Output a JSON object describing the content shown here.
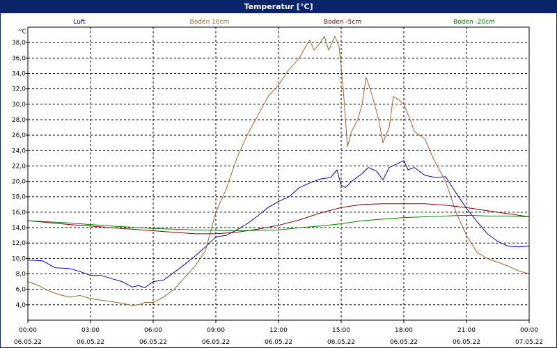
{
  "window": {
    "title": "Temperatur [°C]"
  },
  "chart_data": {
    "type": "line",
    "title": "Temperatur [°C]",
    "y_unit": "°C",
    "ylim": [
      2,
      40
    ],
    "y_ticks": [
      "4,0",
      "6,0",
      "8,0",
      "10,0",
      "12,0",
      "14,0",
      "16,0",
      "18,0",
      "20,0",
      "22,0",
      "24,0",
      "26,0",
      "28,0",
      "30,0",
      "32,0",
      "34,0",
      "36,0",
      "38,0"
    ],
    "y_tick_values": [
      4,
      6,
      8,
      10,
      12,
      14,
      16,
      18,
      20,
      22,
      24,
      26,
      28,
      30,
      32,
      34,
      36,
      38
    ],
    "x_range_hours": [
      0,
      24
    ],
    "x_ticks": [
      {
        "h": 0,
        "time": "00:00",
        "date": "06.05.22"
      },
      {
        "h": 3,
        "time": "03:00",
        "date": "06.05.22"
      },
      {
        "h": 6,
        "time": "06:00",
        "date": "06.05.22"
      },
      {
        "h": 9,
        "time": "09:00",
        "date": "06.05.22"
      },
      {
        "h": 12,
        "time": "12:00",
        "date": "06.05.22"
      },
      {
        "h": 15,
        "time": "15:00",
        "date": "06.05.22"
      },
      {
        "h": 18,
        "time": "18:00",
        "date": "06.05.22"
      },
      {
        "h": 21,
        "time": "21:00",
        "date": "06.05.22"
      },
      {
        "h": 24,
        "time": "00:00",
        "date": "07.05.22"
      }
    ],
    "grid": true,
    "legend_position": "top",
    "series": [
      {
        "name": "Luft",
        "color": "#0000cc",
        "points": [
          [
            0,
            9.8
          ],
          [
            0.7,
            9.7
          ],
          [
            1.3,
            8.8
          ],
          [
            2,
            8.7
          ],
          [
            2.5,
            8.3
          ],
          [
            3,
            7.8
          ],
          [
            3.5,
            7.8
          ],
          [
            4,
            7.4
          ],
          [
            4.5,
            7
          ],
          [
            5,
            6.3
          ],
          [
            5.3,
            6.5
          ],
          [
            5.6,
            6.2
          ],
          [
            6,
            7
          ],
          [
            6.5,
            7.2
          ],
          [
            7,
            8.2
          ],
          [
            7.5,
            9.2
          ],
          [
            8,
            10.3
          ],
          [
            8.5,
            11.5
          ],
          [
            9,
            12.8
          ],
          [
            9.5,
            13
          ],
          [
            10,
            13.7
          ],
          [
            10.5,
            14.5
          ],
          [
            11,
            15.5
          ],
          [
            11.5,
            16.6
          ],
          [
            12,
            17.4
          ],
          [
            12.5,
            18
          ],
          [
            13,
            19.2
          ],
          [
            13.5,
            19.8
          ],
          [
            14,
            20.3
          ],
          [
            14.5,
            20.5
          ],
          [
            14.8,
            21.5
          ],
          [
            15,
            19.5
          ],
          [
            15.2,
            19.2
          ],
          [
            15.5,
            20
          ],
          [
            16,
            21
          ],
          [
            16.3,
            21.8
          ],
          [
            16.7,
            21.3
          ],
          [
            17,
            20.2
          ],
          [
            17.3,
            21.8
          ],
          [
            17.7,
            22.3
          ],
          [
            18,
            22.7
          ],
          [
            18.2,
            21.5
          ],
          [
            18.5,
            21.8
          ],
          [
            19,
            20.8
          ],
          [
            19.5,
            20.5
          ],
          [
            20,
            20.6
          ],
          [
            20.5,
            18.5
          ],
          [
            21,
            16.5
          ],
          [
            21.5,
            14.8
          ],
          [
            22,
            13.2
          ],
          [
            22.5,
            12.2
          ],
          [
            23,
            11.6
          ],
          [
            23.5,
            11.5
          ],
          [
            24,
            11.6
          ]
        ]
      },
      {
        "name": "Boden 10cm",
        "color": "#996633",
        "points": [
          [
            0,
            7
          ],
          [
            0.5,
            6.5
          ],
          [
            1,
            5.8
          ],
          [
            1.5,
            5.3
          ],
          [
            2,
            5
          ],
          [
            2.5,
            5.2
          ],
          [
            3,
            4.8
          ],
          [
            3.5,
            4.6
          ],
          [
            4,
            4.4
          ],
          [
            4.5,
            4.2
          ],
          [
            5,
            3.9
          ],
          [
            5.3,
            4
          ],
          [
            5.6,
            4.3
          ],
          [
            6,
            4.3
          ],
          [
            6.5,
            5
          ],
          [
            7,
            6
          ],
          [
            7.5,
            7.5
          ],
          [
            8,
            9
          ],
          [
            8.5,
            11
          ],
          [
            9,
            16
          ],
          [
            9.5,
            19
          ],
          [
            10,
            23
          ],
          [
            10.5,
            26
          ],
          [
            11,
            28.5
          ],
          [
            11.5,
            31
          ],
          [
            12,
            32.5
          ],
          [
            12.5,
            34.5
          ],
          [
            13,
            36
          ],
          [
            13.3,
            37.5
          ],
          [
            13.5,
            38.3
          ],
          [
            13.7,
            37
          ],
          [
            14,
            38
          ],
          [
            14.2,
            38.8
          ],
          [
            14.4,
            37
          ],
          [
            14.7,
            38.8
          ],
          [
            14.9,
            37.5
          ],
          [
            15.1,
            32
          ],
          [
            15.3,
            24.5
          ],
          [
            15.5,
            26.5
          ],
          [
            15.8,
            28
          ],
          [
            16,
            30
          ],
          [
            16.2,
            33.5
          ],
          [
            16.5,
            31
          ],
          [
            16.8,
            28
          ],
          [
            17,
            25
          ],
          [
            17.3,
            27
          ],
          [
            17.5,
            31
          ],
          [
            17.8,
            30.5
          ],
          [
            18,
            30
          ],
          [
            18.3,
            28
          ],
          [
            18.5,
            26.5
          ],
          [
            19,
            25.5
          ],
          [
            19.5,
            22.5
          ],
          [
            20,
            20
          ],
          [
            20.5,
            16
          ],
          [
            21,
            13
          ],
          [
            21.5,
            10.8
          ],
          [
            22,
            10
          ],
          [
            22.5,
            9.5
          ],
          [
            23,
            9
          ],
          [
            23.5,
            8.4
          ],
          [
            24,
            8
          ]
        ]
      },
      {
        "name": "Boden -5cm",
        "color": "#800000",
        "points": [
          [
            0,
            14.9
          ],
          [
            2,
            14.4
          ],
          [
            4,
            14
          ],
          [
            6,
            13.6
          ],
          [
            8,
            13.2
          ],
          [
            9,
            13.2
          ],
          [
            10,
            13.4
          ],
          [
            11,
            13.8
          ],
          [
            12,
            14.3
          ],
          [
            13,
            15
          ],
          [
            14,
            15.9
          ],
          [
            15,
            16.6
          ],
          [
            16,
            17
          ],
          [
            17,
            17.1
          ],
          [
            18,
            17.1
          ],
          [
            19,
            17.1
          ],
          [
            20,
            16.9
          ],
          [
            21,
            16.6
          ],
          [
            22,
            16.2
          ],
          [
            23,
            15.8
          ],
          [
            24,
            15.4
          ]
        ]
      },
      {
        "name": "Boden -20cm",
        "color": "#008000",
        "points": [
          [
            0,
            14.9
          ],
          [
            2,
            14.6
          ],
          [
            4,
            14.2
          ],
          [
            6,
            13.9
          ],
          [
            8,
            13.7
          ],
          [
            10,
            13.6
          ],
          [
            12,
            13.7
          ],
          [
            13,
            14
          ],
          [
            14,
            14.2
          ],
          [
            15,
            14.5
          ],
          [
            16,
            14.9
          ],
          [
            17,
            15.1
          ],
          [
            18,
            15.3
          ],
          [
            19,
            15.4
          ],
          [
            20,
            15.5
          ],
          [
            21,
            15.6
          ],
          [
            22,
            15.5
          ],
          [
            23,
            15.5
          ],
          [
            24,
            15.4
          ]
        ]
      }
    ]
  }
}
